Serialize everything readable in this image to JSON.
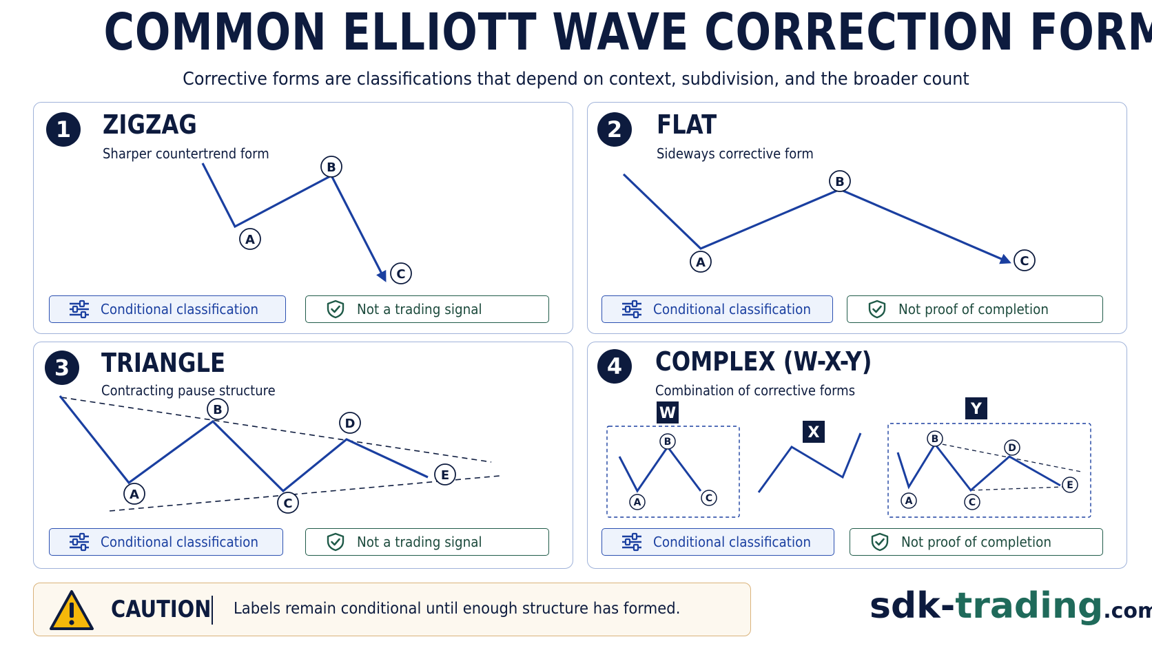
{
  "title": "COMMON ELLIOTT WAVE CORRECTION FORMS",
  "subtitle": "Corrective forms are classifications that depend on context, subdivision, and the broader count",
  "colors": {
    "navy": "#0d1b3e",
    "wave_blue": "#1a3fa0",
    "green": "#1f5a48",
    "caution_border": "#d9b27a",
    "warning_yellow": "#f5b80a"
  },
  "panels": [
    {
      "number": "1",
      "title": "ZIGZAG",
      "subtitle": "Sharper countertrend form",
      "labels": [
        "A",
        "B",
        "C"
      ],
      "tag_left": {
        "icon": "sliders-icon",
        "label": "Conditional classification"
      },
      "tag_right": {
        "icon": "shield-check-icon",
        "label": "Not a trading signal"
      }
    },
    {
      "number": "2",
      "title": "FLAT",
      "subtitle": "Sideways corrective form",
      "labels": [
        "A",
        "B",
        "C"
      ],
      "tag_left": {
        "icon": "sliders-icon",
        "label": "Conditional classification"
      },
      "tag_right": {
        "icon": "shield-check-icon",
        "label": "Not proof of completion"
      }
    },
    {
      "number": "3",
      "title": "TRIANGLE",
      "subtitle": "Contracting pause structure",
      "labels": [
        "A",
        "B",
        "C",
        "D",
        "E"
      ],
      "tag_left": {
        "icon": "sliders-icon",
        "label": "Conditional classification"
      },
      "tag_right": {
        "icon": "shield-check-icon",
        "label": "Not a trading signal"
      }
    },
    {
      "number": "4",
      "title": "COMPLEX (W-X-Y)",
      "subtitle": "Combination of corrective forms",
      "segments": [
        "W",
        "X",
        "Y"
      ],
      "w_labels": [
        "A",
        "B",
        "C"
      ],
      "y_labels": [
        "A",
        "B",
        "C",
        "D",
        "E"
      ],
      "tag_left": {
        "icon": "sliders-icon",
        "label": "Conditional classification"
      },
      "tag_right": {
        "icon": "shield-check-icon",
        "label": "Not proof of completion"
      }
    }
  ],
  "caution": {
    "icon": "warning-triangle-icon",
    "label": "CAUTION",
    "text": "Labels remain conditional until enough structure has formed."
  },
  "brand": {
    "name": "sdk-",
    "name_accent": "trading",
    "suffix": ".com"
  }
}
